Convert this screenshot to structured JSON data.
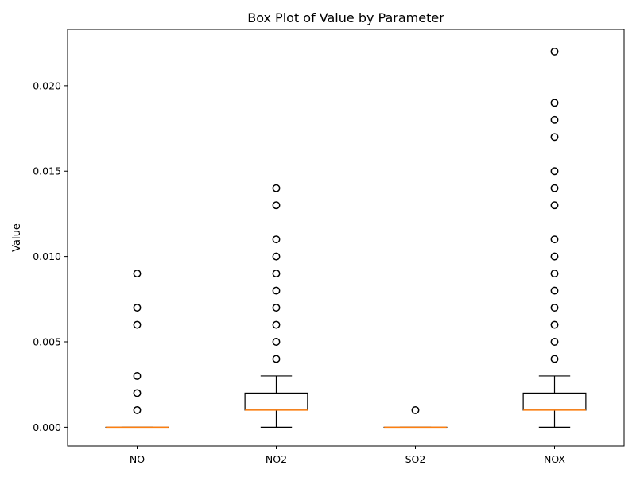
{
  "chart_data": {
    "type": "box",
    "title": "Box Plot of Value by Parameter",
    "xlabel": "",
    "ylabel": "Value",
    "ylim": [
      -0.0011,
      0.0233
    ],
    "yticks": [
      0.0,
      0.005,
      0.01,
      0.015,
      0.02
    ],
    "ytick_labels": [
      "0.000",
      "0.005",
      "0.010",
      "0.015",
      "0.020"
    ],
    "grid": false,
    "colors": {
      "box": "#000000",
      "median": "#ff7f0e"
    },
    "categories": [
      "NO",
      "NO2",
      "SO2",
      "NOX"
    ],
    "boxes": [
      {
        "name": "NO",
        "whisker_low": 0.0,
        "q1": 0.0,
        "median": 0.0,
        "q3": 0.0,
        "whisker_high": 0.0,
        "outliers": [
          0.001,
          0.002,
          0.003,
          0.006,
          0.007,
          0.009
        ]
      },
      {
        "name": "NO2",
        "whisker_low": 0.0,
        "q1": 0.001,
        "median": 0.001,
        "q3": 0.002,
        "whisker_high": 0.003,
        "outliers": [
          0.004,
          0.005,
          0.006,
          0.007,
          0.008,
          0.009,
          0.01,
          0.011,
          0.013,
          0.014
        ]
      },
      {
        "name": "SO2",
        "whisker_low": 0.0,
        "q1": 0.0,
        "median": 0.0,
        "q3": 0.0,
        "whisker_high": 0.0,
        "outliers": [
          0.001
        ]
      },
      {
        "name": "NOX",
        "whisker_low": 0.0,
        "q1": 0.001,
        "median": 0.001,
        "q3": 0.002,
        "whisker_high": 0.003,
        "outliers": [
          0.004,
          0.005,
          0.006,
          0.007,
          0.008,
          0.009,
          0.01,
          0.011,
          0.013,
          0.014,
          0.015,
          0.017,
          0.018,
          0.019,
          0.022
        ]
      }
    ]
  }
}
